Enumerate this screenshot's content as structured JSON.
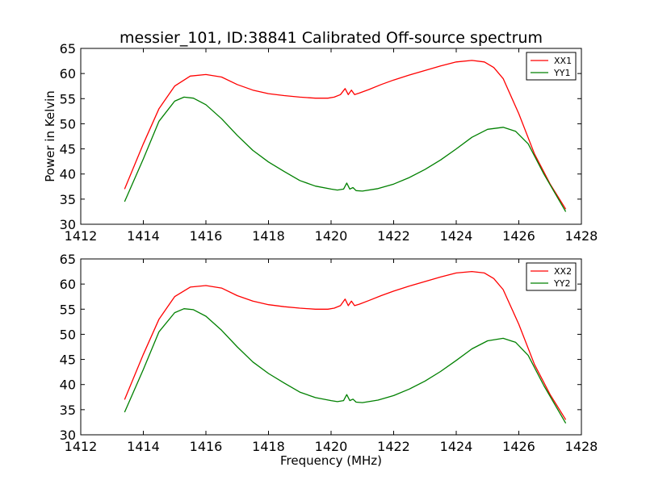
{
  "figure": {
    "title": "messier_101, ID:38841 Calibrated Off-source spectrum",
    "ylabel": "Power in Kelvin",
    "xlabel": "Frequency (MHz)"
  },
  "chart_data": [
    {
      "type": "line",
      "title": "messier_101, ID:38841 Calibrated Off-source spectrum",
      "xlabel": "",
      "ylabel": "Power in Kelvin",
      "xlim": [
        1412,
        1428
      ],
      "ylim": [
        30,
        65
      ],
      "xticks": [
        "1412",
        "1414",
        "1416",
        "1418",
        "1420",
        "1422",
        "1424",
        "1426",
        "1428"
      ],
      "yticks": [
        "30",
        "35",
        "40",
        "45",
        "50",
        "55",
        "60",
        "65"
      ],
      "grid": false,
      "legend_position": "top-right",
      "series": [
        {
          "name": "XX1",
          "color": "#ff0000",
          "x": [
            1413.4,
            1414.0,
            1414.5,
            1415.0,
            1415.5,
            1416.0,
            1416.5,
            1417.0,
            1417.5,
            1418.0,
            1418.5,
            1419.0,
            1419.5,
            1419.9,
            1420.1,
            1420.3,
            1420.45,
            1420.55,
            1420.65,
            1420.75,
            1420.9,
            1421.2,
            1421.6,
            1422.0,
            1422.5,
            1423.0,
            1423.5,
            1424.0,
            1424.5,
            1424.9,
            1425.2,
            1425.5,
            1426.0,
            1426.5,
            1427.0,
            1427.5
          ],
          "y": [
            37.0,
            46.0,
            53.0,
            57.5,
            59.5,
            59.8,
            59.3,
            57.8,
            56.7,
            56.0,
            55.6,
            55.3,
            55.1,
            55.1,
            55.3,
            55.8,
            57.0,
            55.8,
            56.7,
            55.8,
            56.1,
            56.8,
            57.8,
            58.7,
            59.7,
            60.6,
            61.5,
            62.3,
            62.6,
            62.3,
            61.2,
            59.0,
            52.0,
            44.0,
            38.0,
            33.0
          ]
        },
        {
          "name": "YY1",
          "color": "#008000",
          "x": [
            1413.4,
            1414.0,
            1414.5,
            1415.0,
            1415.3,
            1415.6,
            1416.0,
            1416.5,
            1417.0,
            1417.5,
            1418.0,
            1418.5,
            1419.0,
            1419.5,
            1420.0,
            1420.2,
            1420.4,
            1420.5,
            1420.6,
            1420.7,
            1420.8,
            1421.0,
            1421.5,
            1422.0,
            1422.5,
            1423.0,
            1423.5,
            1424.0,
            1424.5,
            1425.0,
            1425.5,
            1425.9,
            1426.3,
            1426.8,
            1427.5
          ],
          "y": [
            34.5,
            43.0,
            50.5,
            54.5,
            55.3,
            55.1,
            53.8,
            51.0,
            47.7,
            44.7,
            42.4,
            40.5,
            38.7,
            37.6,
            37.0,
            36.8,
            37.0,
            38.2,
            37.0,
            37.3,
            36.7,
            36.6,
            37.1,
            38.0,
            39.3,
            40.9,
            42.8,
            45.0,
            47.3,
            48.9,
            49.3,
            48.5,
            46.0,
            40.0,
            32.5
          ]
        }
      ]
    },
    {
      "type": "line",
      "title": "",
      "xlabel": "Frequency (MHz)",
      "ylabel": "",
      "xlim": [
        1412,
        1428
      ],
      "ylim": [
        30,
        65
      ],
      "xticks": [
        "1412",
        "1414",
        "1416",
        "1418",
        "1420",
        "1422",
        "1424",
        "1426",
        "1428"
      ],
      "yticks": [
        "30",
        "35",
        "40",
        "45",
        "50",
        "55",
        "60",
        "65"
      ],
      "grid": false,
      "legend_position": "top-right",
      "series": [
        {
          "name": "XX2",
          "color": "#ff0000",
          "x": [
            1413.4,
            1414.0,
            1414.5,
            1415.0,
            1415.5,
            1416.0,
            1416.5,
            1417.0,
            1417.5,
            1418.0,
            1418.5,
            1419.0,
            1419.5,
            1419.9,
            1420.1,
            1420.3,
            1420.45,
            1420.55,
            1420.65,
            1420.75,
            1420.9,
            1421.2,
            1421.6,
            1422.0,
            1422.5,
            1423.0,
            1423.5,
            1424.0,
            1424.5,
            1424.9,
            1425.2,
            1425.5,
            1426.0,
            1426.5,
            1427.0,
            1427.5
          ],
          "y": [
            37.0,
            46.0,
            53.0,
            57.5,
            59.4,
            59.7,
            59.2,
            57.7,
            56.6,
            55.9,
            55.5,
            55.2,
            55.0,
            55.0,
            55.2,
            55.7,
            57.0,
            55.7,
            56.6,
            55.7,
            56.0,
            56.7,
            57.7,
            58.6,
            59.6,
            60.5,
            61.4,
            62.2,
            62.5,
            62.2,
            61.1,
            58.9,
            52.0,
            44.0,
            38.0,
            33.0
          ]
        },
        {
          "name": "YY2",
          "color": "#008000",
          "x": [
            1413.4,
            1414.0,
            1414.5,
            1415.0,
            1415.3,
            1415.6,
            1416.0,
            1416.5,
            1417.0,
            1417.5,
            1418.0,
            1418.5,
            1419.0,
            1419.5,
            1420.0,
            1420.2,
            1420.4,
            1420.5,
            1420.6,
            1420.7,
            1420.8,
            1421.0,
            1421.5,
            1422.0,
            1422.5,
            1423.0,
            1423.5,
            1424.0,
            1424.5,
            1425.0,
            1425.5,
            1425.9,
            1426.3,
            1426.8,
            1427.5
          ],
          "y": [
            34.5,
            43.0,
            50.5,
            54.3,
            55.1,
            54.9,
            53.6,
            50.8,
            47.5,
            44.5,
            42.2,
            40.3,
            38.5,
            37.4,
            36.8,
            36.6,
            36.8,
            38.0,
            36.8,
            37.1,
            36.5,
            36.4,
            36.9,
            37.8,
            39.1,
            40.7,
            42.6,
            44.8,
            47.1,
            48.7,
            49.2,
            48.4,
            45.8,
            39.8,
            32.3
          ]
        }
      ]
    }
  ]
}
